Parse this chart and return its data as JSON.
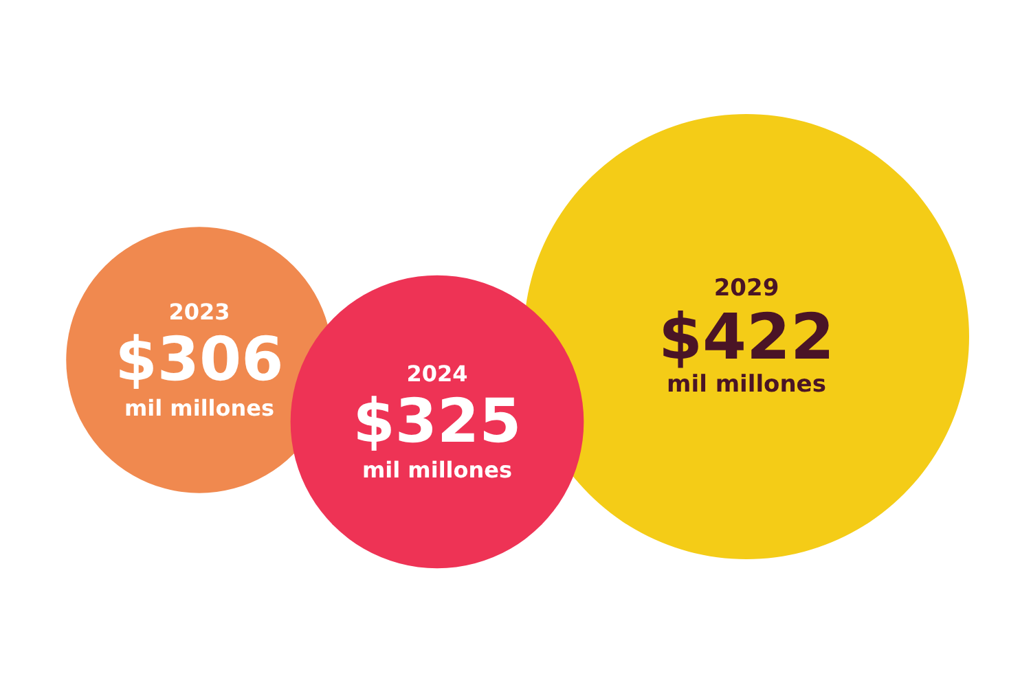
{
  "chart_data": {
    "type": "other",
    "categories": [
      "2023",
      "2024",
      "2029"
    ],
    "values": [
      306,
      325,
      422
    ],
    "value_labels": [
      "$306\nmil millones",
      "$325\nmil millones",
      "$422\nmil millones"
    ],
    "colors": [
      "#f0894f",
      "#ee3355",
      "#f4cc17"
    ]
  }
}
